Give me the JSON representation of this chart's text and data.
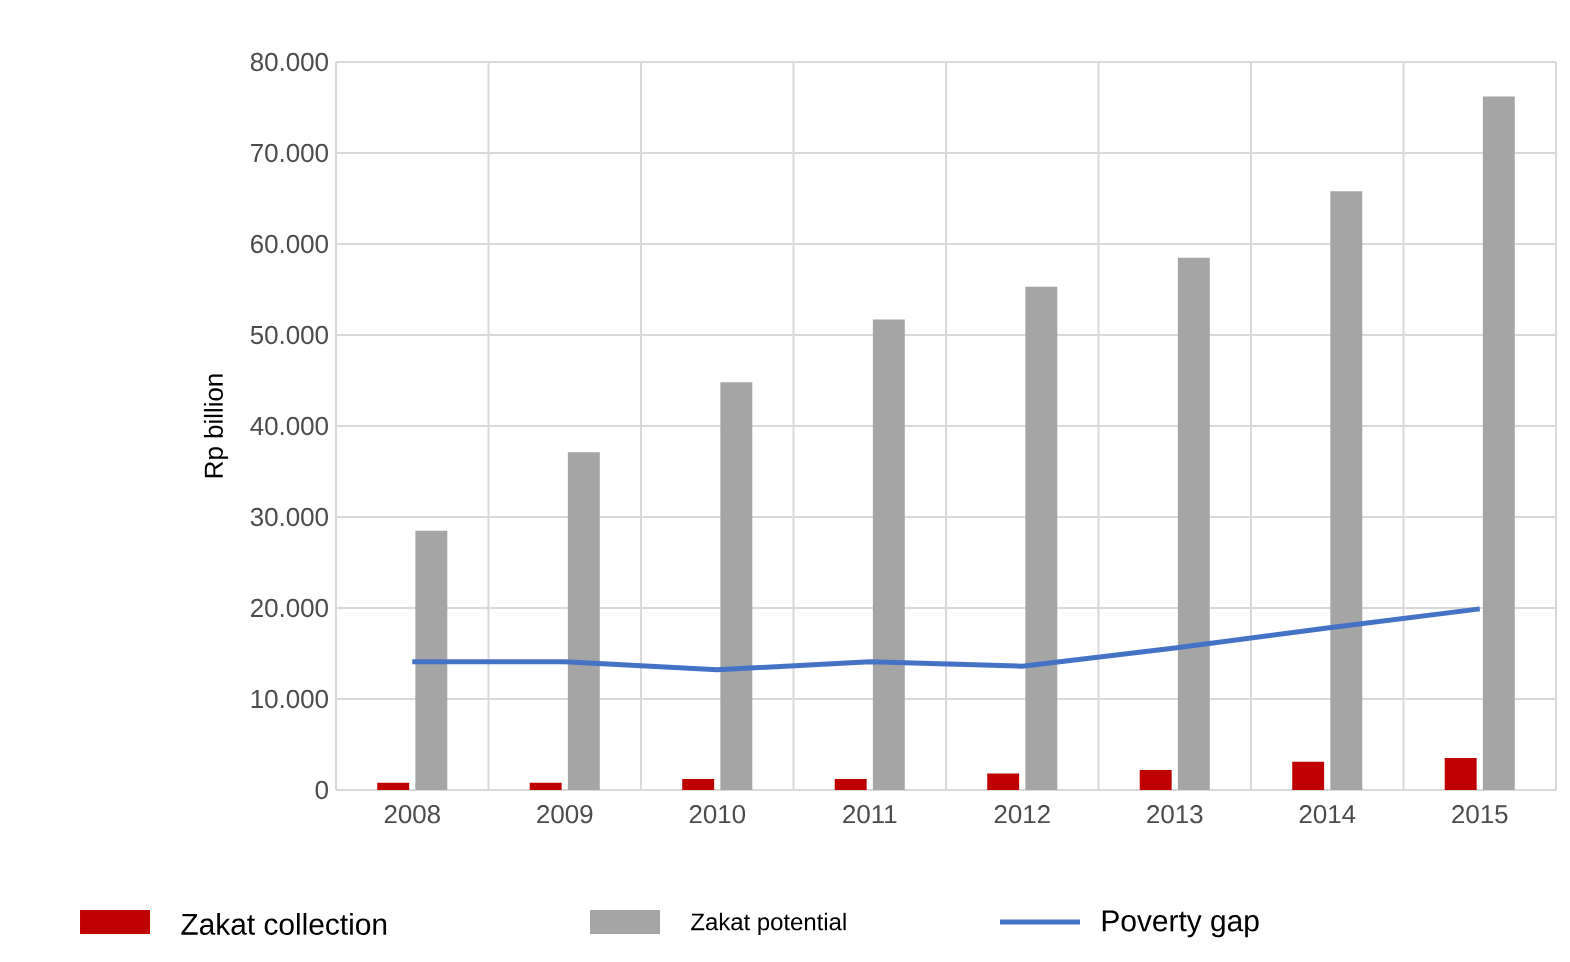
{
  "chart_data": {
    "type": "bar",
    "ylabel": "Rp billion",
    "categories": [
      "2008",
      "2009",
      "2010",
      "2011",
      "2012",
      "2013",
      "2014",
      "2015"
    ],
    "series": [
      {
        "name": "Zakat collection",
        "color": "#c00000",
        "values": [
          800,
          800,
          1200,
          1200,
          1800,
          2200,
          3100,
          3500
        ]
      },
      {
        "name": "Zakat potential",
        "color": "#a5a5a5",
        "values": [
          28500,
          37100,
          44800,
          51700,
          55300,
          58500,
          65800,
          76200
        ]
      },
      {
        "name": "Poverty gap",
        "type": "line",
        "color": "#4472c4",
        "values": [
          14100,
          14100,
          13200,
          14100,
          13600,
          15600,
          17800,
          19900
        ]
      }
    ],
    "ylim": [
      0,
      80000
    ],
    "yticks": [
      {
        "value": 0,
        "label": "0"
      },
      {
        "value": 10000,
        "label": "10.000"
      },
      {
        "value": 20000,
        "label": "20.000"
      },
      {
        "value": 30000,
        "label": "30.000"
      },
      {
        "value": 40000,
        "label": "40.000"
      },
      {
        "value": 50000,
        "label": "50.000"
      },
      {
        "value": 60000,
        "label": "60.000"
      },
      {
        "value": 70000,
        "label": "70.000"
      },
      {
        "value": 80000,
        "label": "80.000"
      }
    ],
    "grid": true,
    "legend": "bottom",
    "marker": "none"
  }
}
